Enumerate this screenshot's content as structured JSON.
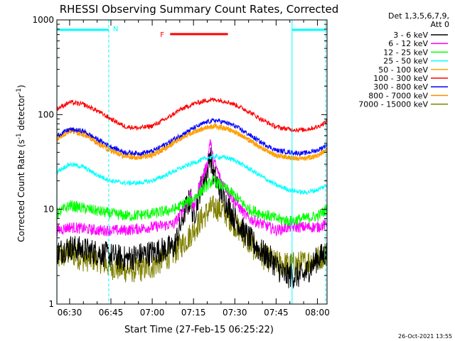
{
  "chart_data": {
    "type": "line",
    "title": "RHESSI Observing Summary Count Rates, Corrected",
    "xlabel": "Start Time (27-Feb-15 06:25:22)",
    "ylabel_main": "Corrected Count Rate (s",
    "ylabel_sup1": "-1",
    "ylabel_mid": " detector",
    "ylabel_sup2": "-1",
    "ylabel_end": ")",
    "x_start_min": 385.37,
    "x_end_min": 483.5,
    "ylim": [
      1,
      1000
    ],
    "y_scale": "log",
    "x_ticks": [
      {
        "t": 390,
        "label": "06:30"
      },
      {
        "t": 405,
        "label": "06:45"
      },
      {
        "t": 420,
        "label": "07:00"
      },
      {
        "t": 435,
        "label": "07:15"
      },
      {
        "t": 450,
        "label": "07:30"
      },
      {
        "t": 465,
        "label": "07:45"
      },
      {
        "t": 480,
        "label": "08:00"
      }
    ],
    "y_ticks": [
      {
        "v": 1,
        "label": "1"
      },
      {
        "v": 10,
        "label": "10"
      },
      {
        "v": 100,
        "label": "100"
      },
      {
        "v": 1000,
        "label": "1000"
      }
    ],
    "legend_header": [
      "Det 1,3,5,6,7,9,",
      "Att 0"
    ],
    "series": [
      {
        "name": "3 - 6 keV",
        "color": "#000000",
        "points": [
          [
            385.4,
            3.5
          ],
          [
            390,
            4
          ],
          [
            400,
            3.5
          ],
          [
            410,
            3
          ],
          [
            420,
            3.5
          ],
          [
            428,
            4
          ],
          [
            432,
            10
          ],
          [
            434,
            13
          ],
          [
            435,
            8
          ],
          [
            437,
            15
          ],
          [
            440,
            25
          ],
          [
            441,
            40
          ],
          [
            442,
            25
          ],
          [
            445,
            15
          ],
          [
            450,
            8
          ],
          [
            455,
            5
          ],
          [
            460,
            3.5
          ],
          [
            463,
            3
          ],
          [
            468,
            2
          ],
          [
            475,
            2
          ],
          [
            480,
            3
          ],
          [
            483.5,
            3.5
          ]
        ]
      },
      {
        "name": "6 - 12 keV",
        "color": "#ff00ff",
        "points": [
          [
            385.4,
            6
          ],
          [
            390,
            6.5
          ],
          [
            400,
            6
          ],
          [
            410,
            6
          ],
          [
            420,
            6.5
          ],
          [
            428,
            7
          ],
          [
            432,
            11
          ],
          [
            434,
            15
          ],
          [
            435,
            10
          ],
          [
            437,
            17
          ],
          [
            440,
            30
          ],
          [
            441,
            55
          ],
          [
            442,
            35
          ],
          [
            445,
            20
          ],
          [
            450,
            12
          ],
          [
            455,
            8
          ],
          [
            460,
            7
          ],
          [
            465,
            6
          ],
          [
            470,
            6.5
          ],
          [
            480,
            6.5
          ],
          [
            483.5,
            7
          ]
        ]
      },
      {
        "name": "12 - 25 keV",
        "color": "#00ff00",
        "points": [
          [
            385.4,
            9
          ],
          [
            390,
            11
          ],
          [
            397,
            10
          ],
          [
            405,
            9
          ],
          [
            412,
            8.5
          ],
          [
            420,
            9
          ],
          [
            428,
            10
          ],
          [
            435,
            13
          ],
          [
            440,
            18
          ],
          [
            442,
            20
          ],
          [
            445,
            18
          ],
          [
            450,
            14
          ],
          [
            455,
            10
          ],
          [
            460,
            9
          ],
          [
            465,
            8
          ],
          [
            470,
            7.5
          ],
          [
            480,
            8.5
          ],
          [
            483.5,
            10
          ]
        ]
      },
      {
        "name": "25 - 50 keV",
        "color": "#00ffff",
        "points": [
          [
            385.4,
            25
          ],
          [
            390,
            30
          ],
          [
            395,
            28
          ],
          [
            400,
            23
          ],
          [
            405,
            20
          ],
          [
            410,
            19
          ],
          [
            415,
            19
          ],
          [
            420,
            20
          ],
          [
            425,
            23
          ],
          [
            430,
            27
          ],
          [
            435,
            31
          ],
          [
            440,
            35
          ],
          [
            443,
            36
          ],
          [
            447,
            35
          ],
          [
            450,
            33
          ],
          [
            455,
            27
          ],
          [
            460,
            22
          ],
          [
            465,
            18
          ],
          [
            470,
            16
          ],
          [
            475,
            15
          ],
          [
            480,
            16
          ],
          [
            483.5,
            18
          ]
        ]
      },
      {
        "name": "50 - 100 keV",
        "color": "#ffa500",
        "points": [
          [
            385.4,
            55
          ],
          [
            390,
            70
          ],
          [
            395,
            65
          ],
          [
            400,
            52
          ],
          [
            405,
            42
          ],
          [
            410,
            37
          ],
          [
            415,
            36
          ],
          [
            420,
            38
          ],
          [
            425,
            45
          ],
          [
            430,
            56
          ],
          [
            435,
            66
          ],
          [
            440,
            73
          ],
          [
            443,
            74
          ],
          [
            447,
            71
          ],
          [
            450,
            66
          ],
          [
            455,
            55
          ],
          [
            460,
            44
          ],
          [
            465,
            37
          ],
          [
            470,
            35
          ],
          [
            475,
            34
          ],
          [
            480,
            37
          ],
          [
            483.5,
            42
          ]
        ]
      },
      {
        "name": "100 - 300 keV",
        "color": "#ff0000",
        "points": [
          [
            385.4,
            115
          ],
          [
            390,
            135
          ],
          [
            395,
            128
          ],
          [
            400,
            110
          ],
          [
            405,
            90
          ],
          [
            410,
            75
          ],
          [
            415,
            72
          ],
          [
            420,
            76
          ],
          [
            425,
            90
          ],
          [
            430,
            112
          ],
          [
            435,
            130
          ],
          [
            440,
            142
          ],
          [
            443,
            144
          ],
          [
            447,
            138
          ],
          [
            450,
            128
          ],
          [
            455,
            108
          ],
          [
            460,
            88
          ],
          [
            465,
            74
          ],
          [
            470,
            70
          ],
          [
            475,
            69
          ],
          [
            480,
            74
          ],
          [
            483.5,
            85
          ]
        ]
      },
      {
        "name": "300 - 800 keV",
        "color": "#0000ff",
        "points": [
          [
            385.4,
            60
          ],
          [
            390,
            70
          ],
          [
            395,
            67
          ],
          [
            400,
            55
          ],
          [
            405,
            46
          ],
          [
            410,
            40
          ],
          [
            415,
            39
          ],
          [
            420,
            41
          ],
          [
            425,
            49
          ],
          [
            430,
            60
          ],
          [
            435,
            72
          ],
          [
            440,
            84
          ],
          [
            443,
            87
          ],
          [
            447,
            82
          ],
          [
            450,
            76
          ],
          [
            455,
            62
          ],
          [
            460,
            50
          ],
          [
            465,
            42
          ],
          [
            470,
            40
          ],
          [
            475,
            39
          ],
          [
            480,
            42
          ],
          [
            483.5,
            48
          ]
        ]
      },
      {
        "name": "800 - 7000 keV",
        "color": "#ff8c00",
        "points": [
          [
            385.4,
            55
          ],
          [
            390,
            67
          ],
          [
            395,
            62
          ],
          [
            400,
            50
          ],
          [
            405,
            41
          ],
          [
            410,
            36
          ],
          [
            415,
            35
          ],
          [
            420,
            37
          ],
          [
            425,
            44
          ],
          [
            430,
            55
          ],
          [
            435,
            65
          ],
          [
            440,
            74
          ],
          [
            443,
            76
          ],
          [
            447,
            72
          ],
          [
            450,
            66
          ],
          [
            455,
            54
          ],
          [
            460,
            44
          ],
          [
            465,
            37
          ],
          [
            470,
            35
          ],
          [
            475,
            34
          ],
          [
            480,
            37
          ],
          [
            483.5,
            43
          ]
        ]
      },
      {
        "name": "7000 - 15000 keV",
        "color": "#808000",
        "points": [
          [
            385.4,
            3
          ],
          [
            390,
            3.5
          ],
          [
            395,
            3
          ],
          [
            400,
            3
          ],
          [
            405,
            2.5
          ],
          [
            410,
            2.3
          ],
          [
            415,
            2.3
          ],
          [
            420,
            2.5
          ],
          [
            428,
            3.5
          ],
          [
            433,
            5
          ],
          [
            438,
            8
          ],
          [
            441,
            10
          ],
          [
            443,
            10.5
          ],
          [
            446,
            9.5
          ],
          [
            450,
            7
          ],
          [
            455,
            4.5
          ],
          [
            460,
            3.2
          ],
          [
            465,
            2.7
          ],
          [
            470,
            2.6
          ],
          [
            475,
            2.7
          ],
          [
            480,
            3
          ],
          [
            483.5,
            3.5
          ]
        ]
      }
    ],
    "annotations": {
      "n_label": "N",
      "f_label": "F",
      "night_bars": [
        [
          385.4,
          404.2
        ],
        [
          470.8,
          483.0
        ]
      ],
      "flare_bar": [
        426.5,
        447.5
      ],
      "vlines_solid": [
        385.4,
        470.8
      ],
      "vlines_dashed": [
        404.2,
        483.0
      ]
    },
    "grid": false,
    "legend_position": "right"
  },
  "footer_timestamp": "26-Oct-2021 13:55"
}
